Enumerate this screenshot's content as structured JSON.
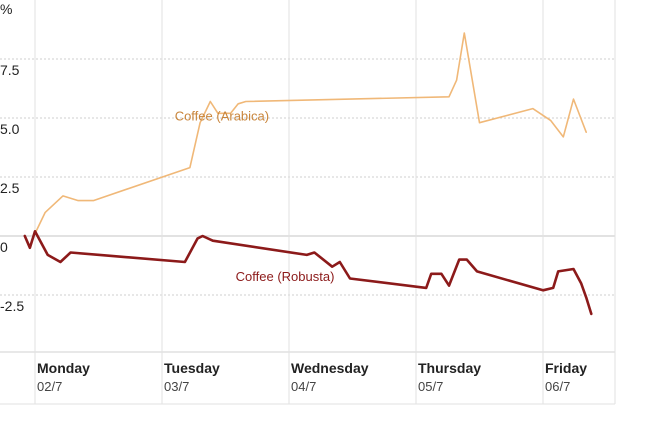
{
  "chart_data": {
    "type": "line",
    "title": "",
    "xlabel": "",
    "ylabel": "",
    "y_unit_label": "%",
    "ylim": [
      -4.6,
      10.0
    ],
    "xlim": [
      0,
      4.5
    ],
    "grid": true,
    "y_ticks": [
      {
        "value": 7.5,
        "label": "7.5"
      },
      {
        "value": 5.0,
        "label": "5.0"
      },
      {
        "value": 2.5,
        "label": "2.5"
      },
      {
        "value": 0,
        "label": "0"
      },
      {
        "value": -2.5,
        "label": "-2.5"
      }
    ],
    "x_ticks": [
      {
        "x": 0,
        "day": "Monday",
        "date": "02/7"
      },
      {
        "x": 1,
        "day": "Tuesday",
        "date": "03/7"
      },
      {
        "x": 2,
        "day": "Wednesday",
        "date": "04/7"
      },
      {
        "x": 3,
        "day": "Thursday",
        "date": "05/7"
      },
      {
        "x": 4,
        "day": "Friday",
        "date": "06/7"
      }
    ],
    "series": [
      {
        "name": "Coffee (Arabica)",
        "color": "#f0b878",
        "label_color": "#c8843a",
        "label_anchor": {
          "x": 1.1,
          "y": 4.9
        },
        "points": [
          [
            0.0,
            0.1
          ],
          [
            0.08,
            1.0
          ],
          [
            0.22,
            1.7
          ],
          [
            0.34,
            1.5
          ],
          [
            0.46,
            1.5
          ],
          [
            1.22,
            2.9
          ],
          [
            1.3,
            4.8
          ],
          [
            1.38,
            5.7
          ],
          [
            1.44,
            5.2
          ],
          [
            1.54,
            5.2
          ],
          [
            1.6,
            5.6
          ],
          [
            1.66,
            5.7
          ],
          [
            3.26,
            5.9
          ],
          [
            3.32,
            6.6
          ],
          [
            3.38,
            8.6
          ],
          [
            3.5,
            4.8
          ],
          [
            3.92,
            5.4
          ],
          [
            4.06,
            4.9
          ],
          [
            4.16,
            4.2
          ],
          [
            4.24,
            5.8
          ],
          [
            4.34,
            4.4
          ]
        ]
      },
      {
        "name": "Coffee (Robusta)",
        "color": "#8c1a1a",
        "label_color": "#8c1a1a",
        "label_anchor": {
          "x": 1.58,
          "y": -1.9
        },
        "points": [
          [
            -0.08,
            0.0
          ],
          [
            -0.04,
            -0.5
          ],
          [
            0.0,
            0.2
          ],
          [
            0.04,
            -0.2
          ],
          [
            0.1,
            -0.8
          ],
          [
            0.2,
            -1.1
          ],
          [
            0.28,
            -0.7
          ],
          [
            1.18,
            -1.1
          ],
          [
            1.28,
            -0.1
          ],
          [
            1.32,
            0.0
          ],
          [
            1.4,
            -0.2
          ],
          [
            2.14,
            -0.8
          ],
          [
            2.2,
            -0.7
          ],
          [
            2.34,
            -1.3
          ],
          [
            2.4,
            -1.1
          ],
          [
            2.48,
            -1.8
          ],
          [
            3.08,
            -2.2
          ],
          [
            3.12,
            -1.6
          ],
          [
            3.2,
            -1.6
          ],
          [
            3.26,
            -2.1
          ],
          [
            3.34,
            -1.0
          ],
          [
            3.4,
            -1.0
          ],
          [
            3.48,
            -1.5
          ],
          [
            4.0,
            -2.3
          ],
          [
            4.08,
            -2.2
          ],
          [
            4.12,
            -1.5
          ],
          [
            4.24,
            -1.4
          ],
          [
            4.3,
            -2.0
          ],
          [
            4.34,
            -2.6
          ],
          [
            4.38,
            -3.3
          ]
        ]
      }
    ]
  }
}
